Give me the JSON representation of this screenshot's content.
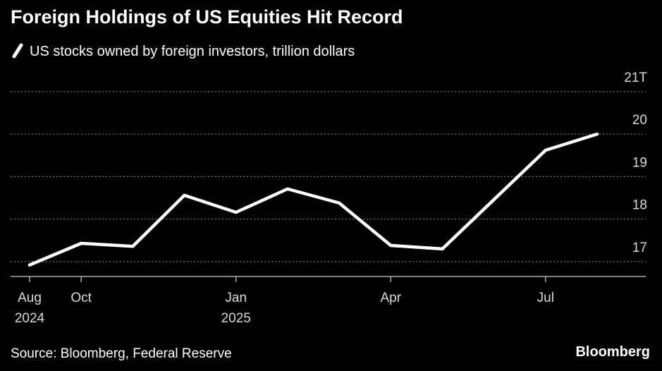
{
  "chart_data": {
    "type": "line",
    "title": "Foreign Holdings of US Equities Hit Record",
    "categories": [
      "Aug",
      "Oct",
      null,
      null,
      "Jan",
      null,
      null,
      "Apr",
      null,
      null,
      "Jul",
      null
    ],
    "category_sublabels": [
      "2024",
      null,
      null,
      null,
      "2025",
      null,
      null,
      null,
      null,
      null,
      null,
      null
    ],
    "series": [
      {
        "name": "US stocks owned by foreign investors, trillion dollars",
        "color": "#ffffff",
        "values": [
          16.92,
          17.43,
          17.36,
          18.56,
          18.16,
          18.71,
          18.38,
          17.38,
          17.3,
          18.46,
          19.62,
          20.0
        ]
      }
    ],
    "ylim": [
      16.65,
      21.33
    ],
    "yticks": [
      17,
      18,
      19,
      20,
      {
        "value": 21,
        "label": "21T"
      }
    ],
    "grid": true,
    "source": "Source: Bloomberg, Federal Reserve",
    "brand": "Bloomberg"
  }
}
